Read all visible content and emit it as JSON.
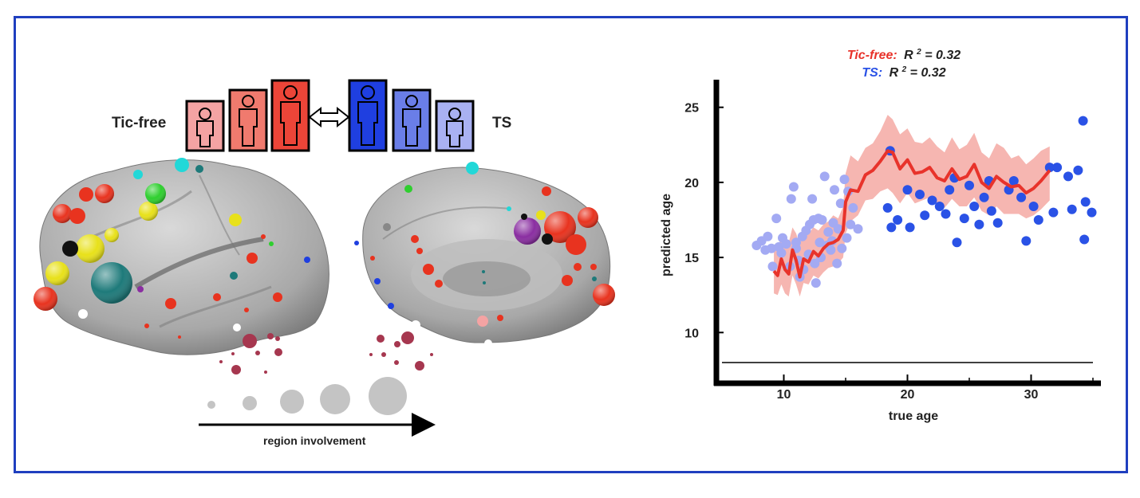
{
  "left_panel": {
    "group_left_label": "Tic-free",
    "group_right_label": "TS",
    "scale_caption": "region involvement",
    "colors": {
      "tic_free_light": "#f4a3a3",
      "tic_free_mid": "#f07a6e",
      "tic_free_dark": "#ec4538",
      "ts_dark": "#1f3fe0",
      "ts_mid": "#6a7ee8",
      "ts_light": "#a9b1f2"
    }
  },
  "chart_data": {
    "type": "scatter",
    "title_line1_name": "Tic-free:",
    "title_line1_stat": "R",
    "title_line1_sup": "2",
    "title_line1_value": " = 0.32",
    "title_line2_name": "TS:",
    "title_line2_stat": "R",
    "title_line2_sup": "2",
    "title_line2_value": " = 0.32",
    "xlabel": "true age",
    "ylabel": "predicted age",
    "xlim": [
      5,
      35
    ],
    "ylim": [
      8,
      27
    ],
    "xticks": [
      10,
      20,
      30
    ],
    "yticks": [
      10,
      15,
      20,
      25
    ],
    "series": [
      {
        "kind": "points",
        "color": "#a3aaf3",
        "points": [
          [
            7.8,
            15.8
          ],
          [
            8.2,
            16.1
          ],
          [
            8.5,
            15.5
          ],
          [
            8.7,
            16.4
          ],
          [
            9.0,
            15.6
          ],
          [
            9.1,
            14.4
          ],
          [
            9.4,
            17.6
          ],
          [
            9.6,
            15.7
          ],
          [
            9.8,
            15.3
          ],
          [
            9.9,
            16.3
          ],
          [
            10.2,
            15.9
          ],
          [
            10.5,
            14.4
          ],
          [
            10.6,
            18.9
          ],
          [
            10.8,
            19.7
          ],
          [
            11.0,
            16.0
          ],
          [
            11.0,
            15.6
          ],
          [
            11.2,
            14.8
          ],
          [
            11.3,
            13.7
          ],
          [
            11.6,
            14.2
          ],
          [
            11.8,
            16.8
          ],
          [
            12.0,
            15.2
          ],
          [
            12.1,
            17.2
          ],
          [
            12.3,
            18.9
          ],
          [
            12.5,
            14.6
          ],
          [
            12.6,
            13.3
          ],
          [
            12.9,
            16.0
          ],
          [
            13.1,
            17.5
          ],
          [
            13.3,
            20.4
          ],
          [
            13.5,
            15.8
          ],
          [
            13.6,
            16.7
          ],
          [
            13.8,
            15.5
          ],
          [
            14.0,
            17.3
          ],
          [
            14.1,
            19.5
          ],
          [
            14.3,
            14.6
          ],
          [
            14.4,
            16.9
          ],
          [
            14.6,
            18.6
          ],
          [
            14.9,
            20.2
          ],
          [
            15.1,
            16.3
          ],
          [
            15.2,
            19.4
          ],
          [
            15.4,
            17.2
          ],
          [
            15.6,
            18.3
          ],
          [
            16.0,
            16.9
          ],
          [
            12.4,
            17.5
          ],
          [
            13.0,
            15.0
          ],
          [
            13.9,
            16.1
          ],
          [
            11.5,
            16.4
          ],
          [
            12.8,
            17.6
          ],
          [
            14.7,
            15.6
          ]
        ]
      },
      {
        "kind": "points",
        "color": "#2a52e6",
        "points": [
          [
            18.6,
            22.1
          ],
          [
            18.4,
            18.3
          ],
          [
            18.7,
            17.0
          ],
          [
            19.2,
            17.5
          ],
          [
            20.0,
            19.5
          ],
          [
            20.2,
            17.0
          ],
          [
            21.0,
            19.2
          ],
          [
            21.4,
            17.8
          ],
          [
            22.6,
            18.4
          ],
          [
            23.4,
            19.5
          ],
          [
            23.1,
            17.9
          ],
          [
            23.8,
            20.3
          ],
          [
            24.0,
            16.0
          ],
          [
            25.0,
            19.8
          ],
          [
            25.4,
            18.4
          ],
          [
            25.8,
            17.2
          ],
          [
            26.2,
            19.0
          ],
          [
            26.6,
            20.1
          ],
          [
            27.3,
            17.3
          ],
          [
            28.2,
            19.5
          ],
          [
            28.6,
            20.1
          ],
          [
            29.2,
            19.0
          ],
          [
            29.6,
            16.1
          ],
          [
            30.2,
            18.4
          ],
          [
            30.6,
            17.5
          ],
          [
            31.5,
            21.0
          ],
          [
            31.8,
            18.0
          ],
          [
            32.1,
            21.0
          ],
          [
            33.0,
            20.4
          ],
          [
            33.3,
            18.2
          ],
          [
            33.8,
            20.8
          ],
          [
            34.2,
            24.1
          ],
          [
            34.4,
            18.7
          ],
          [
            34.9,
            18.0
          ],
          [
            34.3,
            16.2
          ],
          [
            26.8,
            18.1
          ],
          [
            24.6,
            17.6
          ],
          [
            22.0,
            18.8
          ]
        ]
      },
      {
        "kind": "trend",
        "name": "Tic-free",
        "color": "#e8332b",
        "band_color": "#f5a9a3",
        "x": [
          9.2,
          9.5,
          9.8,
          10.1,
          10.4,
          10.7,
          11.0,
          11.3,
          11.6,
          12.0,
          12.4,
          12.8,
          13.2,
          13.6,
          14.0,
          14.4,
          14.8,
          15.0,
          15.4,
          16.0,
          16.6,
          17.2,
          17.8,
          18.4,
          18.8,
          19.4,
          20.0,
          20.6,
          21.2,
          21.8,
          22.4,
          23.0,
          23.6,
          24.2,
          24.8,
          25.4,
          26.0,
          26.6,
          27.2,
          27.8,
          28.4,
          29.0,
          29.6,
          30.2,
          30.8,
          31.5
        ],
        "y": [
          14.1,
          13.8,
          14.9,
          14.2,
          13.9,
          15.5,
          14.8,
          13.7,
          14.9,
          14.7,
          15.4,
          15.1,
          15.6,
          15.9,
          16.0,
          16.2,
          16.8,
          18.7,
          19.5,
          19.4,
          20.5,
          20.8,
          21.4,
          22.1,
          22.0,
          20.9,
          21.5,
          20.6,
          20.7,
          21.0,
          20.3,
          20.1,
          20.9,
          20.2,
          20.4,
          21.2,
          20.0,
          19.6,
          20.4,
          20.0,
          19.7,
          19.8,
          19.3,
          19.6,
          20.1,
          20.8
        ],
        "lower": [
          12.6,
          12.5,
          13.2,
          12.6,
          12.4,
          13.8,
          13.2,
          12.4,
          13.3,
          13.2,
          13.8,
          13.6,
          14.0,
          14.3,
          14.4,
          14.6,
          15.0,
          16.6,
          17.4,
          17.8,
          18.8,
          18.9,
          19.4,
          19.6,
          19.3,
          18.6,
          19.3,
          18.6,
          18.8,
          19.0,
          18.6,
          18.3,
          18.9,
          18.4,
          18.4,
          19.0,
          18.1,
          17.8,
          18.4,
          17.9,
          17.9,
          17.9,
          17.6,
          17.8,
          18.2,
          18.8
        ],
        "upper": [
          15.5,
          15.6,
          16.4,
          15.8,
          16.0,
          17.0,
          16.6,
          15.8,
          16.8,
          16.6,
          17.0,
          16.8,
          17.2,
          17.4,
          17.8,
          17.6,
          18.4,
          20.6,
          21.8,
          21.4,
          22.3,
          22.6,
          23.4,
          24.5,
          24.2,
          23.2,
          23.6,
          22.7,
          22.6,
          23.0,
          22.4,
          22.0,
          23.0,
          22.2,
          22.5,
          23.3,
          22.0,
          21.6,
          22.6,
          22.3,
          21.6,
          21.8,
          21.2,
          21.6,
          22.1,
          22.4
        ]
      }
    ]
  }
}
